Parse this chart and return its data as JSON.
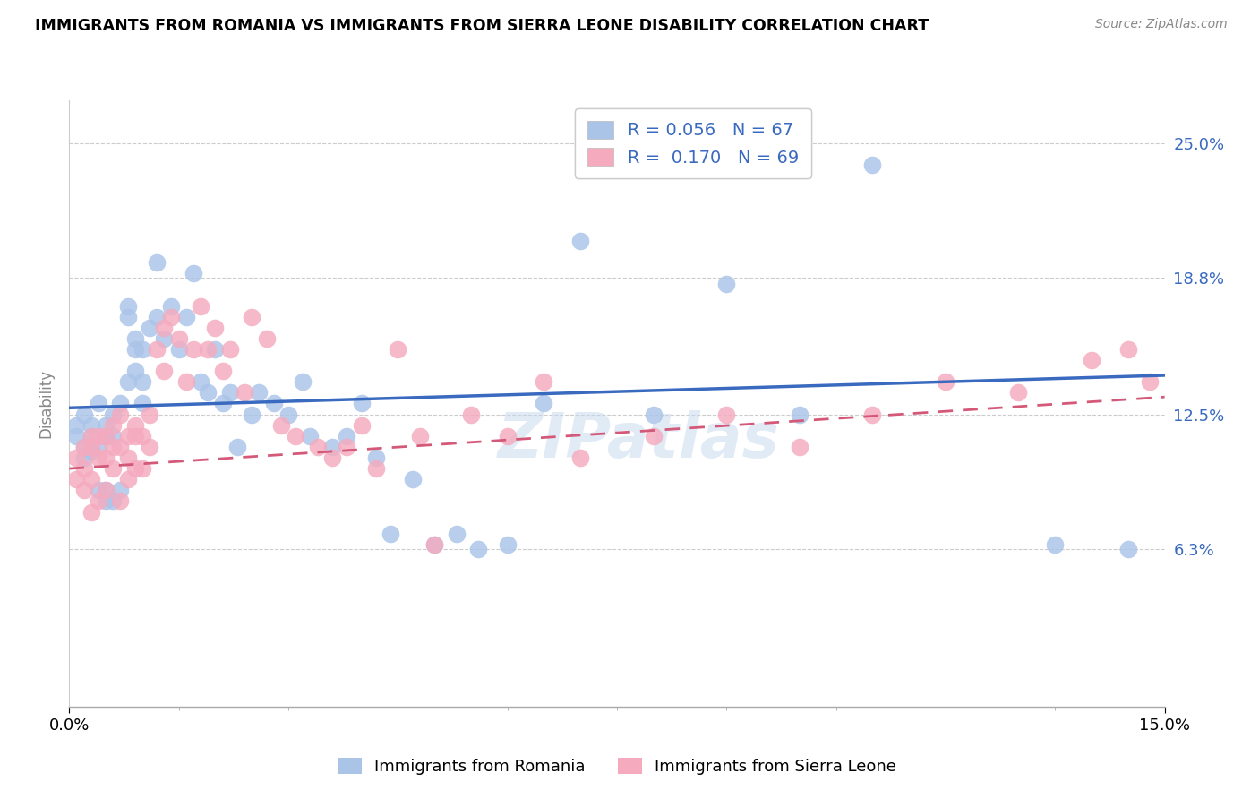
{
  "title": "IMMIGRANTS FROM ROMANIA VS IMMIGRANTS FROM SIERRA LEONE DISABILITY CORRELATION CHART",
  "source": "Source: ZipAtlas.com",
  "ylabel": "Disability",
  "xlim": [
    0.0,
    0.15
  ],
  "ylim": [
    -0.01,
    0.27
  ],
  "romania_R": 0.056,
  "romania_N": 67,
  "sierraleone_R": 0.17,
  "sierraleone_N": 69,
  "romania_color": "#aac4e8",
  "sierraleone_color": "#f5aabe",
  "romania_line_color": "#3a6abf",
  "sierraleone_line_color": "#d45878",
  "watermark": "ZIPatlas",
  "ytick_vals": [
    0.063,
    0.125,
    0.188,
    0.25
  ],
  "ytick_labels": [
    "6.3%",
    "12.5%",
    "18.8%",
    "25.0%"
  ],
  "grid_lines": [
    0.063,
    0.125,
    0.188,
    0.25
  ],
  "romania_x": [
    0.001,
    0.001,
    0.002,
    0.002,
    0.002,
    0.003,
    0.003,
    0.003,
    0.004,
    0.004,
    0.004,
    0.005,
    0.005,
    0.005,
    0.005,
    0.006,
    0.006,
    0.006,
    0.007,
    0.007,
    0.008,
    0.008,
    0.008,
    0.009,
    0.009,
    0.009,
    0.01,
    0.01,
    0.01,
    0.011,
    0.012,
    0.012,
    0.013,
    0.014,
    0.015,
    0.016,
    0.017,
    0.018,
    0.019,
    0.02,
    0.021,
    0.022,
    0.023,
    0.025,
    0.026,
    0.028,
    0.03,
    0.032,
    0.033,
    0.036,
    0.038,
    0.04,
    0.042,
    0.044,
    0.047,
    0.05,
    0.053,
    0.056,
    0.06,
    0.065,
    0.07,
    0.08,
    0.09,
    0.1,
    0.11,
    0.135,
    0.145
  ],
  "romania_y": [
    0.115,
    0.12,
    0.11,
    0.125,
    0.105,
    0.12,
    0.115,
    0.108,
    0.13,
    0.11,
    0.09,
    0.115,
    0.12,
    0.09,
    0.085,
    0.125,
    0.115,
    0.085,
    0.13,
    0.09,
    0.175,
    0.17,
    0.14,
    0.16,
    0.155,
    0.145,
    0.155,
    0.14,
    0.13,
    0.165,
    0.17,
    0.195,
    0.16,
    0.175,
    0.155,
    0.17,
    0.19,
    0.14,
    0.135,
    0.155,
    0.13,
    0.135,
    0.11,
    0.125,
    0.135,
    0.13,
    0.125,
    0.14,
    0.115,
    0.11,
    0.115,
    0.13,
    0.105,
    0.07,
    0.095,
    0.065,
    0.07,
    0.063,
    0.065,
    0.13,
    0.205,
    0.125,
    0.185,
    0.125,
    0.24,
    0.065,
    0.063
  ],
  "sierraleone_x": [
    0.001,
    0.001,
    0.002,
    0.002,
    0.002,
    0.003,
    0.003,
    0.003,
    0.003,
    0.004,
    0.004,
    0.004,
    0.005,
    0.005,
    0.005,
    0.006,
    0.006,
    0.006,
    0.007,
    0.007,
    0.007,
    0.008,
    0.008,
    0.008,
    0.009,
    0.009,
    0.009,
    0.01,
    0.01,
    0.011,
    0.011,
    0.012,
    0.013,
    0.013,
    0.014,
    0.015,
    0.016,
    0.017,
    0.018,
    0.019,
    0.02,
    0.021,
    0.022,
    0.024,
    0.025,
    0.027,
    0.029,
    0.031,
    0.034,
    0.036,
    0.038,
    0.04,
    0.042,
    0.045,
    0.048,
    0.05,
    0.055,
    0.06,
    0.065,
    0.07,
    0.08,
    0.09,
    0.1,
    0.11,
    0.12,
    0.13,
    0.14,
    0.145,
    0.148
  ],
  "sierraleone_y": [
    0.105,
    0.095,
    0.11,
    0.1,
    0.09,
    0.115,
    0.11,
    0.095,
    0.08,
    0.115,
    0.105,
    0.085,
    0.115,
    0.105,
    0.09,
    0.12,
    0.11,
    0.1,
    0.125,
    0.11,
    0.085,
    0.115,
    0.105,
    0.095,
    0.12,
    0.115,
    0.1,
    0.115,
    0.1,
    0.125,
    0.11,
    0.155,
    0.145,
    0.165,
    0.17,
    0.16,
    0.14,
    0.155,
    0.175,
    0.155,
    0.165,
    0.145,
    0.155,
    0.135,
    0.17,
    0.16,
    0.12,
    0.115,
    0.11,
    0.105,
    0.11,
    0.12,
    0.1,
    0.155,
    0.115,
    0.065,
    0.125,
    0.115,
    0.14,
    0.105,
    0.115,
    0.125,
    0.11,
    0.125,
    0.14,
    0.135,
    0.15,
    0.155,
    0.14
  ]
}
